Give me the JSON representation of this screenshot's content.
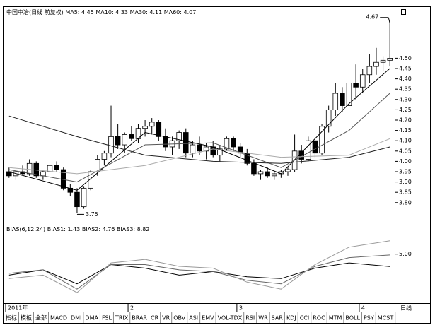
{
  "chart_data": [
    {
      "type": "candlestick",
      "title": "中国中冶(日线 前复权)",
      "categories": [
        "2011年",
        null,
        null,
        null,
        null,
        null,
        null,
        null,
        null,
        null,
        null,
        null,
        null,
        null,
        null,
        null,
        null,
        null,
        "2",
        null,
        null,
        null,
        null,
        null,
        null,
        null,
        null,
        null,
        null,
        null,
        null,
        null,
        null,
        null,
        "3",
        null,
        null,
        null,
        null,
        null,
        null,
        null,
        null,
        null,
        null,
        null,
        null,
        null,
        null,
        null,
        null,
        null,
        "4",
        null,
        null,
        null,
        null
      ],
      "open": [
        3.95,
        3.93,
        3.95,
        3.94,
        3.99,
        3.93,
        3.95,
        3.98,
        3.96,
        3.87,
        3.85,
        3.78,
        3.87,
        3.95,
        4.01,
        4.04,
        4.12,
        4.08,
        4.13,
        4.11,
        4.16,
        4.17,
        4.19,
        4.12,
        4.07,
        4.1,
        4.14,
        4.04,
        4.08,
        4.05,
        4.07,
        4.03,
        4.06,
        4.11,
        4.07,
        4.04,
        3.99,
        3.94,
        3.95,
        3.93,
        3.94,
        3.95,
        3.96,
        4.05,
        4.01,
        4.1,
        4.04,
        4.17,
        4.25,
        4.33,
        4.27,
        4.38,
        4.36,
        4.42,
        4.46,
        4.48,
        4.49
      ],
      "high": [
        3.97,
        3.96,
        3.98,
        4.01,
        4.0,
        3.96,
        3.99,
        4.0,
        3.97,
        3.89,
        3.87,
        3.88,
        3.96,
        4.03,
        4.05,
        4.27,
        4.18,
        4.14,
        4.17,
        4.18,
        4.2,
        4.21,
        4.2,
        4.16,
        4.12,
        4.15,
        4.16,
        4.1,
        4.12,
        4.09,
        4.1,
        4.08,
        4.12,
        4.12,
        4.09,
        4.06,
        4.01,
        3.96,
        3.97,
        3.95,
        3.96,
        3.97,
        4.13,
        4.08,
        4.12,
        4.11,
        4.18,
        4.27,
        4.38,
        4.36,
        4.4,
        4.47,
        4.45,
        4.52,
        4.55,
        4.51,
        4.67
      ],
      "low": [
        3.92,
        3.91,
        3.93,
        3.93,
        3.92,
        3.91,
        3.94,
        3.95,
        3.86,
        3.83,
        3.75,
        3.77,
        3.86,
        3.93,
        3.98,
        4.02,
        4.06,
        4.04,
        4.1,
        4.09,
        4.12,
        4.13,
        4.1,
        4.05,
        4.03,
        4.06,
        4.02,
        4.02,
        4.03,
        4.01,
        4.02,
        4.0,
        4.05,
        4.05,
        4.02,
        3.98,
        3.93,
        3.91,
        3.92,
        3.91,
        3.92,
        3.93,
        3.95,
        3.99,
        4.0,
        4.02,
        4.03,
        4.14,
        4.22,
        4.24,
        4.25,
        4.3,
        4.33,
        4.38,
        4.42,
        4.44,
        4.46
      ],
      "close": [
        3.93,
        3.95,
        3.94,
        3.99,
        3.93,
        3.95,
        3.98,
        3.96,
        3.87,
        3.85,
        3.78,
        3.87,
        3.95,
        4.01,
        4.04,
        4.12,
        4.08,
        4.13,
        4.11,
        4.16,
        4.17,
        4.19,
        4.12,
        4.07,
        4.1,
        4.14,
        4.04,
        4.08,
        4.05,
        4.07,
        4.03,
        4.06,
        4.11,
        4.07,
        4.04,
        3.99,
        3.94,
        3.95,
        3.93,
        3.94,
        3.95,
        3.96,
        4.05,
        4.01,
        4.1,
        4.04,
        4.17,
        4.25,
        4.33,
        4.27,
        4.38,
        4.36,
        4.42,
        4.46,
        4.48,
        4.49,
        4.5
      ],
      "up_color": "#ffffff",
      "down_color": "#000000",
      "annotations": [
        {
          "text": "4.67"
        },
        {
          "text": "3.75"
        }
      ],
      "series": [
        {
          "name": "MA5: 4.45",
          "color": "#000000",
          "x": [
            0,
            10,
            20,
            30,
            40,
            50,
            56
          ],
          "values": [
            3.95,
            3.86,
            4.14,
            4.07,
            3.94,
            4.28,
            4.45
          ]
        },
        {
          "name": "MA10: 4.33",
          "color": "#555555",
          "x": [
            0,
            10,
            20,
            30,
            40,
            50,
            56
          ],
          "values": [
            3.96,
            3.9,
            4.08,
            4.09,
            3.97,
            4.15,
            4.33
          ]
        },
        {
          "name": "MA30: 4.11",
          "color": "#aaaaaa",
          "x": [
            0,
            10,
            20,
            30,
            40,
            50,
            56
          ],
          "values": [
            3.97,
            3.94,
            3.98,
            4.06,
            4.02,
            4.03,
            4.11
          ]
        },
        {
          "name": "MA60: 4.07",
          "color": "#222222",
          "x": [
            0,
            10,
            20,
            30,
            40,
            50,
            56
          ],
          "values": [
            4.22,
            4.12,
            4.03,
            4.0,
            3.99,
            4.02,
            4.07
          ]
        }
      ],
      "ylim": [
        3.7,
        4.7
      ],
      "yticks": [
        {
          "value": 3.8,
          "label": "3.80"
        },
        3.85,
        {
          "value": 3.9,
          "label": "3.90"
        },
        3.95,
        {
          "value": 4.0,
          "label": "4.00"
        },
        4.05,
        {
          "value": 4.1,
          "label": "4.10"
        },
        4.15,
        {
          "value": 4.2,
          "label": "4.20"
        },
        4.25,
        {
          "value": 4.3,
          "label": "4.30"
        },
        4.35,
        {
          "value": 4.4,
          "label": "4.40"
        },
        4.45,
        {
          "value": 4.5,
          "label": "4.50"
        }
      ]
    },
    {
      "type": "line",
      "title": "BIAS(6,12,24)",
      "series": [
        {
          "name": "BIAS1: 1.43",
          "color": "#000000",
          "x": [
            0,
            5,
            10,
            15,
            20,
            25,
            30,
            35,
            40,
            45,
            50,
            56
          ],
          "values": [
            -1,
            0.5,
            -3.5,
            2,
            1,
            -1,
            0,
            -1.5,
            -2,
            1,
            2.5,
            1.43
          ]
        },
        {
          "name": "BIAS2: 4.76",
          "color": "#666666",
          "x": [
            0,
            5,
            10,
            15,
            20,
            25,
            30,
            35,
            40,
            45,
            50,
            56
          ],
          "values": [
            -0.5,
            0.5,
            -5,
            2,
            2,
            0.5,
            0,
            -2.5,
            -3.5,
            1.5,
            4,
            4.76
          ]
        },
        {
          "name": "BIAS3: 8.82",
          "color": "#999999",
          "x": [
            0,
            5,
            10,
            15,
            20,
            25,
            30,
            35,
            40,
            45,
            50,
            56
          ],
          "values": [
            -2,
            -1,
            -6,
            2.5,
            3.5,
            1.5,
            1,
            -3,
            -5,
            2,
            7,
            8.82
          ]
        }
      ],
      "ylim": [
        -8,
        11
      ],
      "yticks": [
        {
          "value": 5,
          "label": "5.00"
        }
      ]
    }
  ],
  "tabs": [
    {
      "label": "指标",
      "active": false
    },
    {
      "label": "模板",
      "active": false
    },
    {
      "label": "全部",
      "active": true
    },
    {
      "label": "MACD",
      "active": false
    },
    {
      "label": "DMI",
      "active": false
    },
    {
      "label": "DMA",
      "active": false
    },
    {
      "label": "FSL",
      "active": false
    },
    {
      "label": "TRIX",
      "active": false
    },
    {
      "label": "BRAR",
      "active": false
    },
    {
      "label": "CR",
      "active": false
    },
    {
      "label": "VR",
      "active": false
    },
    {
      "label": "OBV",
      "active": false
    },
    {
      "label": "ASI",
      "active": false
    },
    {
      "label": "EMV",
      "active": false
    },
    {
      "label": "VOL-TDX",
      "active": false
    },
    {
      "label": "RSI",
      "active": false
    },
    {
      "label": "WR",
      "active": false
    },
    {
      "label": "SAR",
      "active": false
    },
    {
      "label": "KDJ",
      "active": false
    },
    {
      "label": "CCI",
      "active": false
    },
    {
      "label": "ROC",
      "active": false
    },
    {
      "label": "MTM",
      "active": false
    },
    {
      "label": "BOLL",
      "active": false
    },
    {
      "label": "PSY",
      "active": false
    },
    {
      "label": "MCST",
      "active": false
    }
  ],
  "corner_label": "日线"
}
